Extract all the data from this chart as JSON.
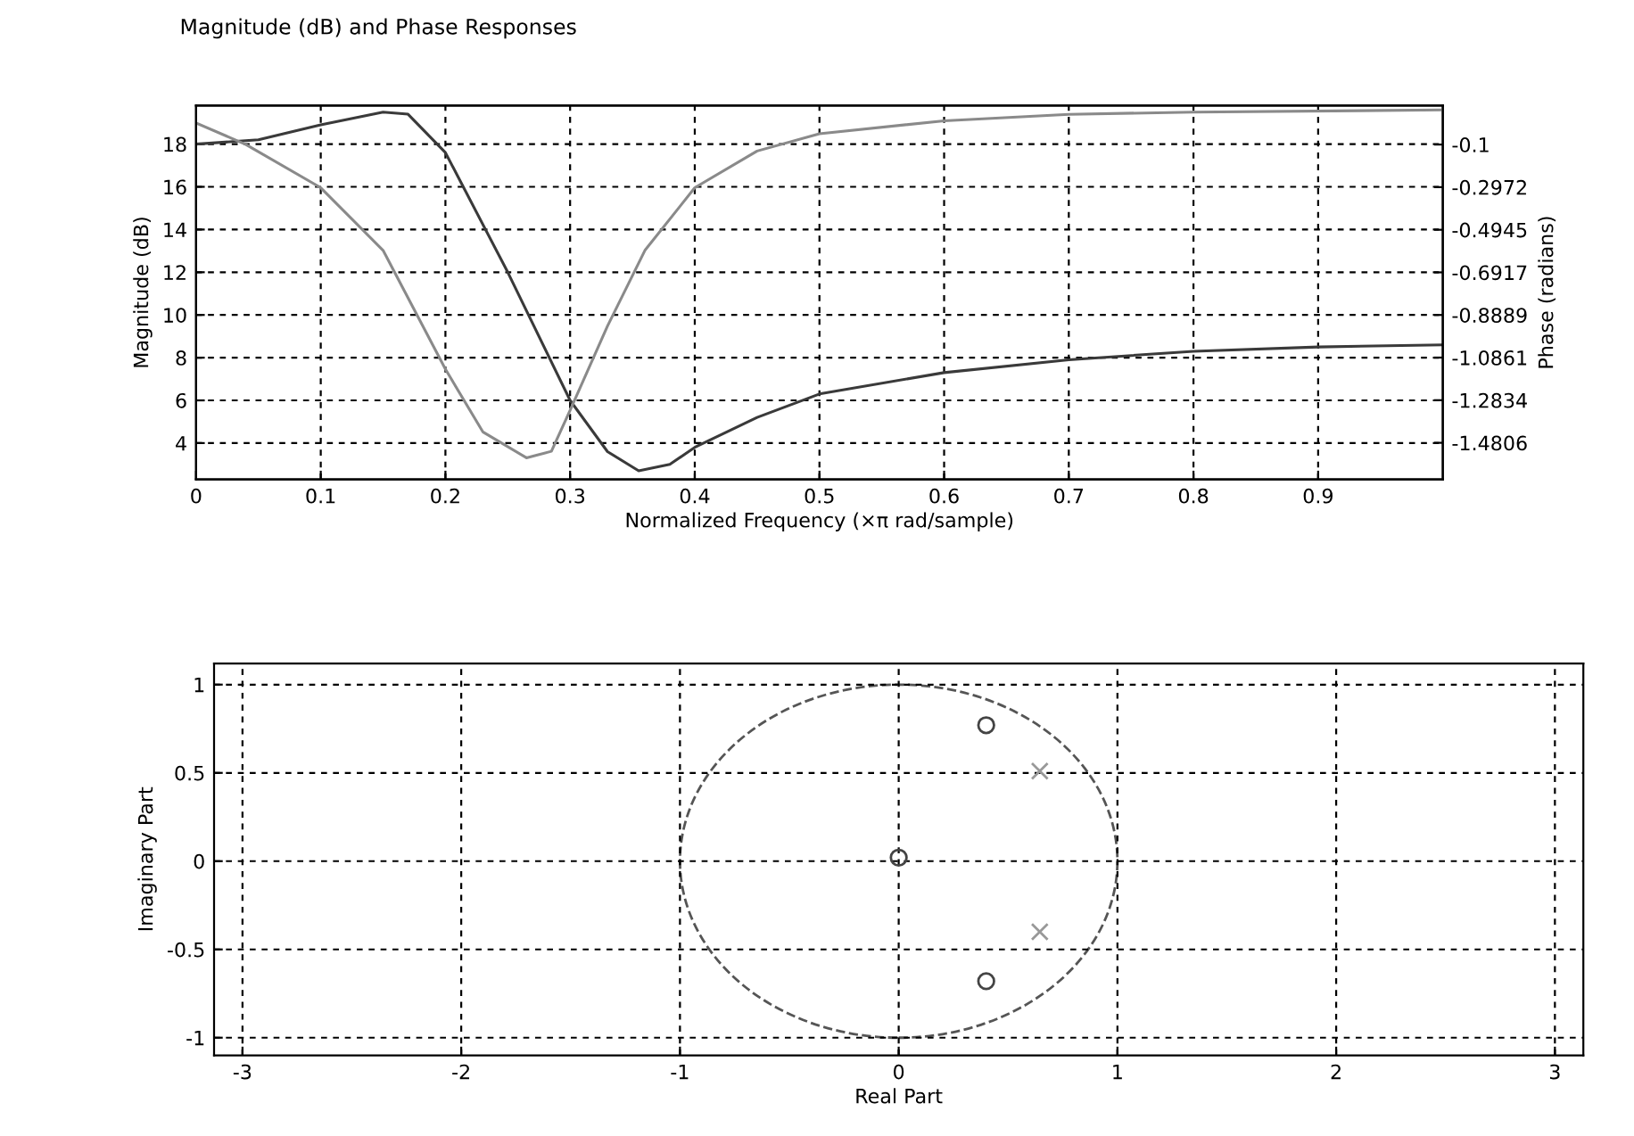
{
  "chart_data": [
    {
      "type": "line",
      "title": "Magnitude (dB) and Phase Responses",
      "xlabel": "Normalized Frequency (×π rad/sample)",
      "ylabel": "Magnitude (dB)",
      "y2label": "Phase (radians)",
      "xlim": [
        0,
        1
      ],
      "xticks": [
        0,
        0.1,
        0.2,
        0.3,
        0.4,
        0.5,
        0.6,
        0.7,
        0.8,
        0.9
      ],
      "ylim": [
        2.3,
        19.8
      ],
      "yticks": [
        4,
        6,
        8,
        10,
        12,
        14,
        16,
        18
      ],
      "y2lim": [
        -1.65,
        0.08
      ],
      "y2ticks": [
        -0.1,
        -0.2972,
        -0.4945,
        -0.6917,
        -0.8889,
        -1.0861,
        -1.2834,
        -1.4806
      ],
      "grid": true,
      "line_style": "solid",
      "series": [
        {
          "color": "#3a3a3a",
          "x": [
            0,
            0.05,
            0.1,
            0.15,
            0.17,
            0.2,
            0.25,
            0.3,
            0.33,
            0.355,
            0.38,
            0.4,
            0.45,
            0.5,
            0.6,
            0.7,
            0.8,
            0.9,
            1.0
          ],
          "values": [
            18,
            18.2,
            18.9,
            19.5,
            19.4,
            17.6,
            12,
            6,
            3.6,
            2.7,
            3,
            3.8,
            5.2,
            6.3,
            7.3,
            7.9,
            8.3,
            8.5,
            8.6
          ]
        },
        {
          "color": "#8a8a8a",
          "axis": "y2",
          "x": [
            0,
            0.04,
            0.1,
            0.15,
            0.2,
            0.23,
            0.265,
            0.285,
            0.3,
            0.33,
            0.36,
            0.4,
            0.45,
            0.5,
            0.6,
            0.7,
            0.8,
            1.0
          ],
          "values": [
            0.0,
            -0.1,
            -0.3,
            -0.59,
            -1.14,
            -1.43,
            -1.55,
            -1.52,
            -1.33,
            -0.94,
            -0.59,
            -0.3,
            -0.13,
            -0.05,
            0.01,
            0.04,
            0.05,
            0.06
          ]
        }
      ]
    },
    {
      "type": "scatter",
      "xlabel": "Real Part",
      "ylabel": "Imaginary Part",
      "xlim": [
        -3.13,
        3.13
      ],
      "xticks": [
        -3,
        -2,
        -1,
        0,
        1,
        2,
        3
      ],
      "ylim": [
        -1.1,
        1.12
      ],
      "yticks": [
        -1,
        -0.5,
        0,
        0.5,
        1
      ],
      "grid": true,
      "series": [
        {
          "marker": "circle",
          "color": "#444444",
          "x": [
            0,
            0.4,
            0.4
          ],
          "values": [
            0.02,
            0.77,
            -0.68
          ]
        },
        {
          "marker": "cross",
          "color": "#999999",
          "x": [
            0.645,
            0.645
          ],
          "values": [
            0.51,
            -0.4
          ]
        }
      ]
    }
  ]
}
